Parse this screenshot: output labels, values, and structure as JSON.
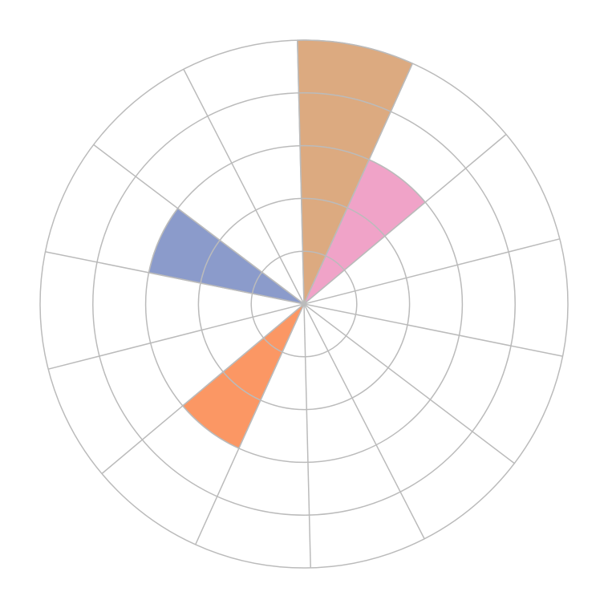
{
  "chart_data": {
    "type": "polar-area",
    "values": [
      5,
      3,
      0,
      0,
      0,
      0,
      0,
      0,
      3,
      0,
      0,
      3,
      0,
      0
    ],
    "colors": [
      "#dcaa80",
      "#f0a3c8",
      null,
      null,
      null,
      null,
      null,
      null,
      "#fb9764",
      null,
      null,
      "#8b9bcb",
      null,
      null
    ],
    "rlim": [
      0,
      5
    ],
    "rticks": [
      1,
      2,
      3,
      4,
      5
    ],
    "grid": true
  }
}
